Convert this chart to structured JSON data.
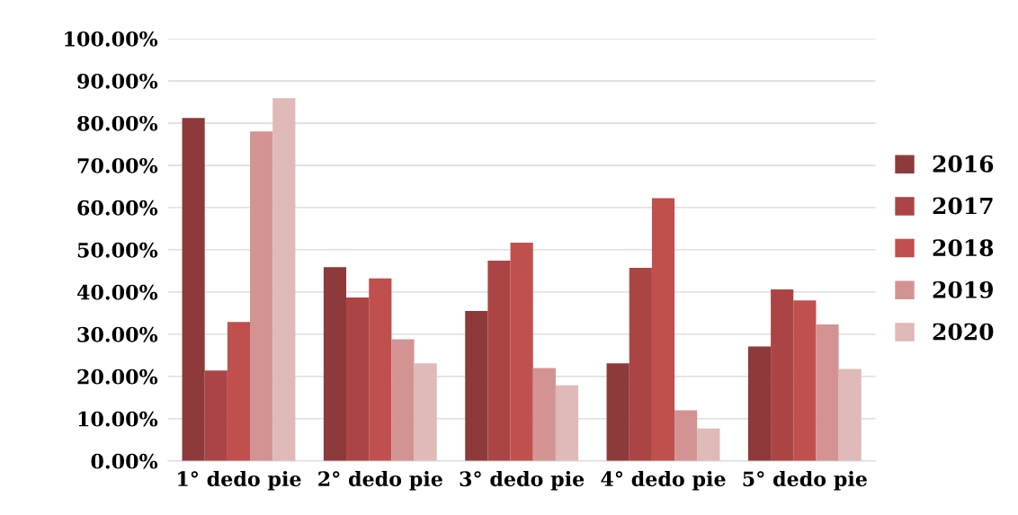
{
  "chart_data": {
    "type": "bar",
    "categories": [
      "1° dedo pie",
      "2° dedo pie",
      "3° dedo pie",
      "4° dedo pie",
      "5° dedo pie"
    ],
    "series": [
      {
        "name": "2016",
        "color": "#8e3a3a",
        "values": [
          81.2,
          45.9,
          35.5,
          23.1,
          27.1
        ]
      },
      {
        "name": "2017",
        "color": "#ab4545",
        "values": [
          21.4,
          38.7,
          47.4,
          45.7,
          40.6
        ]
      },
      {
        "name": "2018",
        "color": "#c0504d",
        "values": [
          32.9,
          43.2,
          51.7,
          62.2,
          38.0
        ]
      },
      {
        "name": "2019",
        "color": "#d39392",
        "values": [
          78.0,
          28.8,
          22.0,
          12.0,
          32.3
        ]
      },
      {
        "name": "2020",
        "color": "#e0b9b9",
        "values": [
          85.9,
          23.1,
          17.9,
          7.7,
          21.8
        ]
      }
    ],
    "ylim": [
      0,
      100
    ],
    "yticks": [
      {
        "value": 0,
        "label": "0.00%"
      },
      {
        "value": 10,
        "label": "10.00%"
      },
      {
        "value": 20,
        "label": "20.00%"
      },
      {
        "value": 30,
        "label": "30.00%"
      },
      {
        "value": 40,
        "label": "40.00%"
      },
      {
        "value": 50,
        "label": "50.00%"
      },
      {
        "value": 60,
        "label": "60.00%"
      },
      {
        "value": 70,
        "label": "70.00%"
      },
      {
        "value": 80,
        "label": "80.00%"
      },
      {
        "value": 90,
        "label": "90.00%"
      },
      {
        "value": 100,
        "label": "100.00%"
      }
    ],
    "grid": "y",
    "legend": "right"
  }
}
